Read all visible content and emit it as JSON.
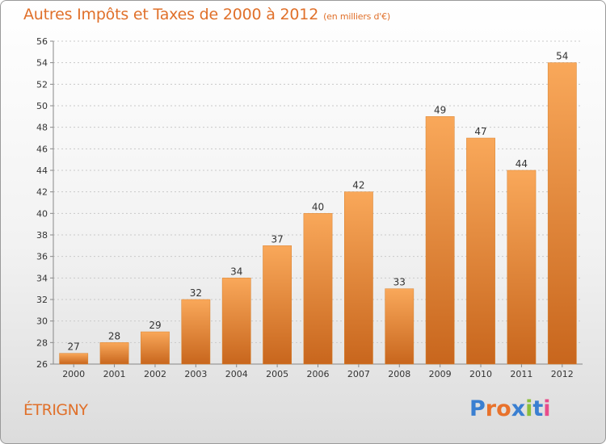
{
  "header": {
    "title": "Autres Impôts et Taxes de 2000 à 2012",
    "subtitle": "(en milliers d'€)"
  },
  "footer": {
    "place": "ÉTRIGNY",
    "logo": "Proxiti"
  },
  "colors": {
    "accent": "#e0702a",
    "bar_top": "#f9a85a",
    "bar_bottom": "#c8661d",
    "logo_letters": [
      "#3a7fd1",
      "#e8722c",
      "#e8722c",
      "#3a7fd1",
      "#8bbf3b",
      "#3a7fd1",
      "#e84c8b"
    ]
  },
  "chart_data": {
    "type": "bar",
    "title": "Autres Impôts et Taxes de 2000 à 2012",
    "subtitle": "(en milliers d'€)",
    "xlabel": "",
    "ylabel": "",
    "categories": [
      "2000",
      "2001",
      "2002",
      "2003",
      "2004",
      "2005",
      "2006",
      "2007",
      "2008",
      "2009",
      "2010",
      "2011",
      "2012"
    ],
    "values": [
      27,
      28,
      29,
      32,
      34,
      37,
      40,
      42,
      33,
      49,
      47,
      44,
      54
    ],
    "ylim": [
      26,
      56
    ],
    "yticks": [
      26,
      28,
      30,
      32,
      34,
      36,
      38,
      40,
      42,
      44,
      46,
      48,
      50,
      52,
      54,
      56
    ],
    "grid": true,
    "data_labels": true
  }
}
